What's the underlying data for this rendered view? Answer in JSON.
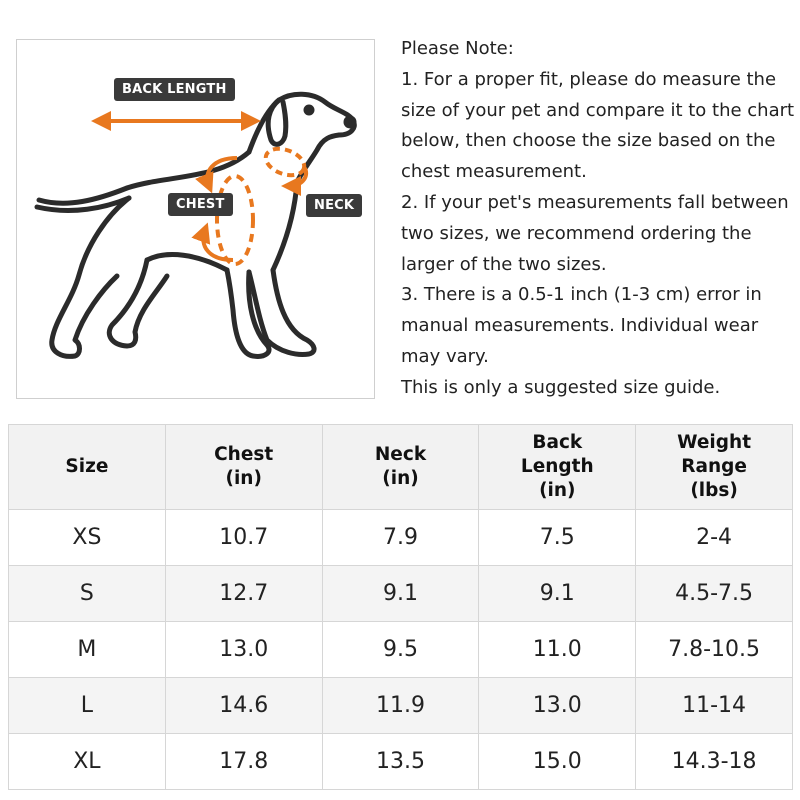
{
  "diagram": {
    "labels": {
      "back_length": "BACK LENGTH",
      "chest": "CHEST",
      "neck": "NECK"
    },
    "accent_color": "#e8781f",
    "label_bg_color": "#3a3a3a"
  },
  "notes": {
    "heading": "Please Note:",
    "item1": "1. For a proper fit, please do measure the size of your pet and compare it to the chart below, then choose the size based on the chest measurement.",
    "item2": "2. If your pet's measurements fall between two sizes, we recommend ordering the larger of the two sizes.",
    "item3": "3. There is a 0.5-1 inch (1-3 cm) error in manual measurements. Individual wear may vary.",
    "footer": "This is only a suggested size guide."
  },
  "size_table": {
    "headers": [
      {
        "lines": [
          "Size"
        ]
      },
      {
        "lines": [
          "Chest",
          "(in)"
        ]
      },
      {
        "lines": [
          "Neck",
          "(in)"
        ]
      },
      {
        "lines": [
          "Back",
          "Length",
          "(in)"
        ]
      },
      {
        "lines": [
          "Weight",
          "Range",
          "(lbs)"
        ]
      }
    ],
    "rows": [
      [
        "XS",
        "10.7",
        "7.9",
        "7.5",
        "2-4"
      ],
      [
        "S",
        "12.7",
        "9.1",
        "9.1",
        "4.5-7.5"
      ],
      [
        "M",
        "13.0",
        "9.5",
        "11.0",
        "7.8-10.5"
      ],
      [
        "L",
        "14.6",
        "11.9",
        "13.0",
        "11-14"
      ],
      [
        "XL",
        "17.8",
        "13.5",
        "15.0",
        "14.3-18"
      ]
    ]
  }
}
